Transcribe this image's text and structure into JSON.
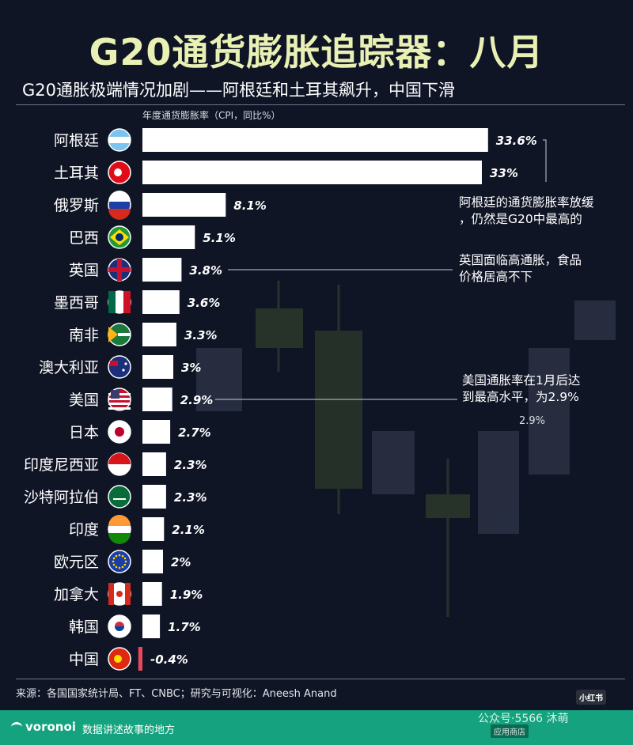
{
  "title": "G20通货膨胀追踪器：八月",
  "subtitle": "G20通胀极端情况加剧——阿根廷和土耳其飙升，中国下滑",
  "axis_title": "年度通货膨胀率（CPI，同比%）",
  "chart_data": {
    "type": "bar",
    "orientation": "horizontal",
    "categories": [
      "阿根廷",
      "土耳其",
      "俄罗斯",
      "巴西",
      "英国",
      "墨西哥",
      "南非",
      "澳大利亚",
      "美国",
      "日本",
      "印度尼西亚",
      "沙特阿拉伯",
      "印度",
      "欧元区",
      "加拿大",
      "韩国",
      "中国"
    ],
    "values": [
      33.6,
      33,
      8.1,
      5.1,
      3.8,
      3.6,
      3.3,
      3,
      2.9,
      2.7,
      2.3,
      2.3,
      2.1,
      2,
      1.9,
      1.7,
      -0.4
    ],
    "value_labels": [
      "33.6%",
      "33%",
      "8.1%",
      "5.1%",
      "3.8%",
      "3.6%",
      "3.3%",
      "3%",
      "2.9%",
      "2.7%",
      "2.3%",
      "2.3%",
      "2.1%",
      "2%",
      "1.9%",
      "1.7%",
      "-0.4%"
    ],
    "flags": [
      "argentina-flag-icon",
      "turkey-flag-icon",
      "russia-flag-icon",
      "brazil-flag-icon",
      "uk-flag-icon",
      "mexico-flag-icon",
      "south-africa-flag-icon",
      "australia-flag-icon",
      "usa-flag-icon",
      "japan-flag-icon",
      "indonesia-flag-icon",
      "saudi-arabia-flag-icon",
      "india-flag-icon",
      "eurozone-flag-icon",
      "canada-flag-icon",
      "south-korea-flag-icon",
      "china-flag-icon"
    ],
    "positive_color": "#ffffff",
    "negative_color": "#e8485a",
    "annotations": [
      {
        "category_index": 0,
        "lines": [
          "阿根廷的通货膨胀率放缓",
          "，仍然是G20中最高的"
        ]
      },
      {
        "category_index": 4,
        "lines": [
          "英国面临高通胀，食品",
          "价格居高不下"
        ]
      },
      {
        "category_index": 8,
        "lines": [
          "美国通胀率在1月后达",
          "到最高水平，为2.9%"
        ]
      }
    ],
    "extra_label": "2.9%"
  },
  "source": "来源：各国国家统计局、FT、CNBC；研究与可视化：Aneesh Anand",
  "footer": {
    "brand": "voronoi",
    "tagline": "数据讲述故事的地方"
  },
  "watermark": {
    "badge": "小红书",
    "text": "公众号·5566 沐萌",
    "store": "应用商店"
  },
  "colors": {
    "background": "#101526",
    "title": "#e9f0b4",
    "footer": "#14a37e"
  }
}
